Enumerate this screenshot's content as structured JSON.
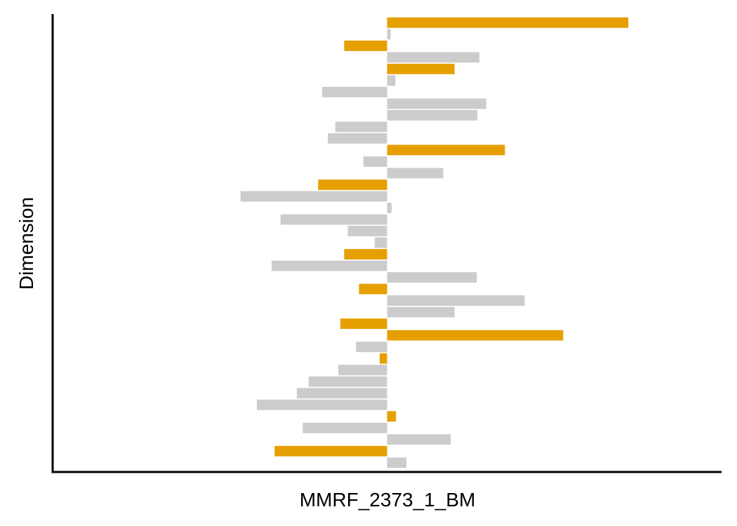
{
  "chart_data": {
    "type": "bar",
    "orientation": "horizontal",
    "xlabel": "MMRF_2373_1_BM",
    "ylabel": "Dimension",
    "xlim": [
      -11.3,
      11.3
    ],
    "grid": false,
    "legend": "none",
    "colors": {
      "highlight": "#E69F00",
      "default": "#CCCCCC"
    },
    "series": [
      {
        "values": [
          8.15,
          0.12,
          -1.45,
          3.12,
          2.28,
          0.28,
          -2.2,
          3.35,
          3.05,
          -1.75,
          -2.0,
          3.98,
          -0.8,
          1.9,
          -2.33,
          -4.95,
          0.15,
          -3.6,
          -1.33,
          -0.42,
          -1.45,
          -3.9,
          3.03,
          -0.95,
          4.65,
          2.28,
          -1.58,
          5.95,
          -1.05,
          -0.25,
          -1.65,
          -2.65,
          -3.05,
          -4.4,
          0.3,
          -2.85,
          2.15,
          -3.8,
          0.65
        ],
        "highlight": [
          true,
          false,
          true,
          false,
          true,
          false,
          false,
          false,
          false,
          false,
          false,
          true,
          false,
          false,
          true,
          false,
          false,
          false,
          false,
          false,
          true,
          false,
          false,
          true,
          false,
          false,
          true,
          true,
          false,
          true,
          false,
          false,
          false,
          false,
          true,
          false,
          false,
          true,
          false
        ]
      }
    ]
  }
}
